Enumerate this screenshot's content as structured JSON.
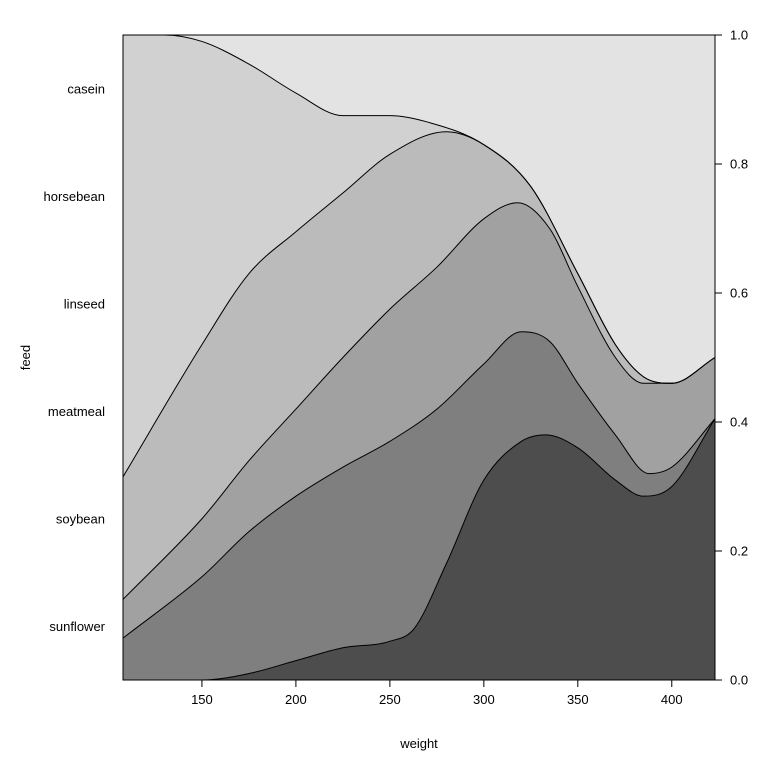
{
  "chart_data": {
    "type": "area",
    "subtype": "conditional density (stacked proportions)",
    "xlabel": "weight",
    "ylabel": "feed",
    "xlim": [
      108,
      423
    ],
    "ylim": [
      0,
      1
    ],
    "x_ticks": [
      150,
      200,
      250,
      300,
      350,
      400
    ],
    "y_ticks_right": [
      "0.0",
      "0.2",
      "0.4",
      "0.6",
      "0.8",
      "1.0"
    ],
    "grid": false,
    "categories": [
      "sunflower",
      "soybean",
      "meatmeal",
      "linseed",
      "horsebean",
      "casein"
    ],
    "colors": [
      "#4d4d4d",
      "#7f7f7f",
      "#a1a1a1",
      "#bbbbbb",
      "#d1d1d1",
      "#e3e3e3"
    ],
    "boundaries": [
      {
        "below": "sunflower",
        "above": "soybean",
        "points": [
          [
            108,
            0
          ],
          [
            150,
            0.0
          ],
          [
            175,
            0.01
          ],
          [
            200,
            0.03
          ],
          [
            225,
            0.05
          ],
          [
            250,
            0.06
          ],
          [
            263,
            0.08
          ],
          [
            280,
            0.18
          ],
          [
            300,
            0.31
          ],
          [
            320,
            0.37
          ],
          [
            333,
            0.38
          ],
          [
            350,
            0.36
          ],
          [
            370,
            0.31
          ],
          [
            385,
            0.285
          ],
          [
            400,
            0.3
          ],
          [
            423,
            0.405
          ]
        ]
      },
      {
        "below": "soybean",
        "above": "meatmeal",
        "points": [
          [
            108,
            0.065
          ],
          [
            150,
            0.16
          ],
          [
            175,
            0.23
          ],
          [
            200,
            0.285
          ],
          [
            225,
            0.33
          ],
          [
            250,
            0.37
          ],
          [
            275,
            0.42
          ],
          [
            300,
            0.49
          ],
          [
            320,
            0.54
          ],
          [
            335,
            0.525
          ],
          [
            350,
            0.46
          ],
          [
            370,
            0.38
          ],
          [
            388,
            0.32
          ],
          [
            400,
            0.33
          ],
          [
            423,
            0.405
          ]
        ]
      },
      {
        "below": "meatmeal",
        "above": "linseed",
        "points": [
          [
            108,
            0.125
          ],
          [
            150,
            0.25
          ],
          [
            175,
            0.34
          ],
          [
            200,
            0.42
          ],
          [
            225,
            0.5
          ],
          [
            250,
            0.575
          ],
          [
            275,
            0.64
          ],
          [
            300,
            0.715
          ],
          [
            318,
            0.74
          ],
          [
            335,
            0.7
          ],
          [
            350,
            0.61
          ],
          [
            370,
            0.5
          ],
          [
            385,
            0.46
          ],
          [
            400,
            0.46
          ],
          [
            423,
            0.5
          ]
        ]
      },
      {
        "below": "linseed",
        "above": "horsebean",
        "points": [
          [
            108,
            0.315
          ],
          [
            150,
            0.52
          ],
          [
            175,
            0.63
          ],
          [
            200,
            0.695
          ],
          [
            225,
            0.755
          ],
          [
            250,
            0.815
          ],
          [
            280,
            0.85
          ],
          [
            300,
            0.83
          ],
          [
            325,
            0.765
          ],
          [
            350,
            0.63
          ],
          [
            370,
            0.52
          ],
          [
            385,
            0.47
          ],
          [
            400,
            0.46
          ],
          [
            423,
            0.5
          ]
        ]
      },
      {
        "below": "horsebean",
        "above": "casein",
        "points": [
          [
            108,
            1.0
          ],
          [
            130,
            1.0
          ],
          [
            150,
            0.99
          ],
          [
            175,
            0.955
          ],
          [
            200,
            0.91
          ],
          [
            225,
            0.875
          ],
          [
            250,
            0.875
          ],
          [
            270,
            0.865
          ],
          [
            300,
            0.83
          ],
          [
            325,
            0.765
          ],
          [
            350,
            0.63
          ],
          [
            370,
            0.52
          ],
          [
            385,
            0.47
          ],
          [
            400,
            0.46
          ],
          [
            423,
            0.5
          ]
        ]
      }
    ]
  }
}
